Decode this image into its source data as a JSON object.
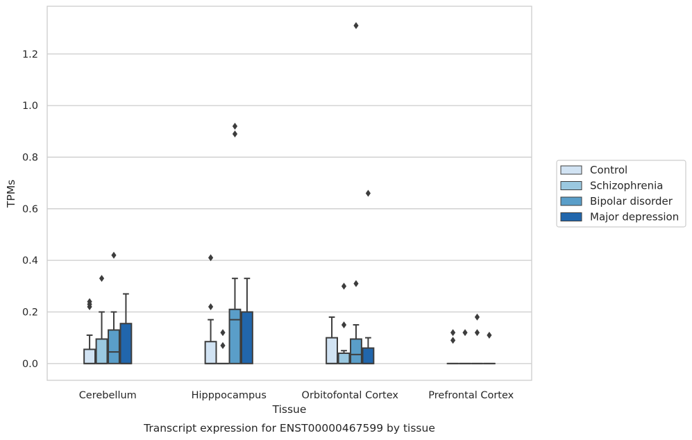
{
  "chart_data": {
    "type": "box",
    "title": "",
    "caption": "Transcript expression for ENST00000467599 by tissue",
    "xlabel": "Tissue",
    "ylabel": "TPMs",
    "ylim": [
      -0.065,
      1.385
    ],
    "yticks": [
      0.0,
      0.2,
      0.4,
      0.6,
      0.8,
      1.0,
      1.2
    ],
    "ytick_labels": [
      "0.0",
      "0.2",
      "0.4",
      "0.6",
      "0.8",
      "1.0",
      "1.2"
    ],
    "grid": "horizontal",
    "legend_position": "right",
    "categories": [
      "Cerebellum",
      "Hipppocampus",
      "Orbitofontal Cortex",
      "Prefrontal Cortex"
    ],
    "series": [
      {
        "name": "Control",
        "color": "#d1e3f3",
        "boxes": [
          {
            "q1": 0.0,
            "median": 0.0,
            "q3": 0.055,
            "whisker_low": 0.0,
            "whisker_high": 0.11,
            "outliers": [
              0.22,
              0.23,
              0.24
            ]
          },
          {
            "q1": 0.0,
            "median": 0.0,
            "q3": 0.085,
            "whisker_low": 0.0,
            "whisker_high": 0.17,
            "outliers": [
              0.22,
              0.41
            ]
          },
          {
            "q1": 0.0,
            "median": 0.0,
            "q3": 0.1,
            "whisker_low": 0.0,
            "whisker_high": 0.18,
            "outliers": []
          },
          {
            "q1": 0.0,
            "median": 0.0,
            "q3": 0.0,
            "whisker_low": 0.0,
            "whisker_high": 0.0,
            "outliers": [
              0.09,
              0.12
            ]
          }
        ]
      },
      {
        "name": "Schizophrenia",
        "color": "#9ac8e0",
        "boxes": [
          {
            "q1": 0.0,
            "median": 0.0,
            "q3": 0.095,
            "whisker_low": 0.0,
            "whisker_high": 0.2,
            "outliers": [
              0.33
            ]
          },
          {
            "q1": 0.0,
            "median": 0.0,
            "q3": 0.0,
            "whisker_low": 0.0,
            "whisker_high": 0.0,
            "outliers": [
              0.07,
              0.12
            ]
          },
          {
            "q1": 0.0,
            "median": 0.0,
            "q3": 0.04,
            "whisker_low": 0.0,
            "whisker_high": 0.05,
            "outliers": [
              0.15,
              0.3
            ]
          },
          {
            "q1": 0.0,
            "median": 0.0,
            "q3": 0.0,
            "whisker_low": 0.0,
            "whisker_high": 0.0,
            "outliers": [
              0.12
            ]
          }
        ]
      },
      {
        "name": "Bipolar disorder",
        "color": "#5a9ec9",
        "boxes": [
          {
            "q1": 0.0,
            "median": 0.045,
            "q3": 0.13,
            "whisker_low": 0.0,
            "whisker_high": 0.2,
            "outliers": [
              0.42
            ]
          },
          {
            "q1": 0.0,
            "median": 0.17,
            "q3": 0.21,
            "whisker_low": 0.0,
            "whisker_high": 0.33,
            "outliers": [
              0.89,
              0.92
            ]
          },
          {
            "q1": 0.0,
            "median": 0.035,
            "q3": 0.095,
            "whisker_low": 0.0,
            "whisker_high": 0.15,
            "outliers": [
              0.31,
              1.31
            ]
          },
          {
            "q1": 0.0,
            "median": 0.0,
            "q3": 0.0,
            "whisker_low": 0.0,
            "whisker_high": 0.0,
            "outliers": [
              0.12,
              0.18
            ]
          }
        ]
      },
      {
        "name": "Major depression",
        "color": "#2166ac",
        "boxes": [
          {
            "q1": 0.0,
            "median": 0.0,
            "q3": 0.155,
            "whisker_low": 0.0,
            "whisker_high": 0.27,
            "outliers": []
          },
          {
            "q1": 0.0,
            "median": 0.2,
            "q3": 0.2,
            "whisker_low": 0.0,
            "whisker_high": 0.33,
            "outliers": []
          },
          {
            "q1": 0.0,
            "median": 0.0,
            "q3": 0.06,
            "whisker_low": 0.0,
            "whisker_high": 0.1,
            "outliers": [
              0.66
            ]
          },
          {
            "q1": 0.0,
            "median": 0.0,
            "q3": 0.0,
            "whisker_low": 0.0,
            "whisker_high": 0.0,
            "outliers": [
              0.11
            ]
          }
        ]
      }
    ]
  }
}
